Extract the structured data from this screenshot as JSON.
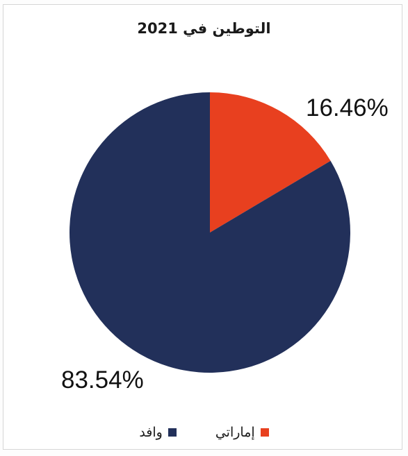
{
  "chart_data": {
    "type": "pie",
    "title": "التوطين في 2021",
    "slices": [
      {
        "name": "إماراتي",
        "value": 16.46,
        "label": "16.46%",
        "color": "#e8401f"
      },
      {
        "name": "وافد",
        "value": 83.54,
        "label": "83.54%",
        "color": "#22305a"
      }
    ],
    "legend_position": "bottom"
  }
}
